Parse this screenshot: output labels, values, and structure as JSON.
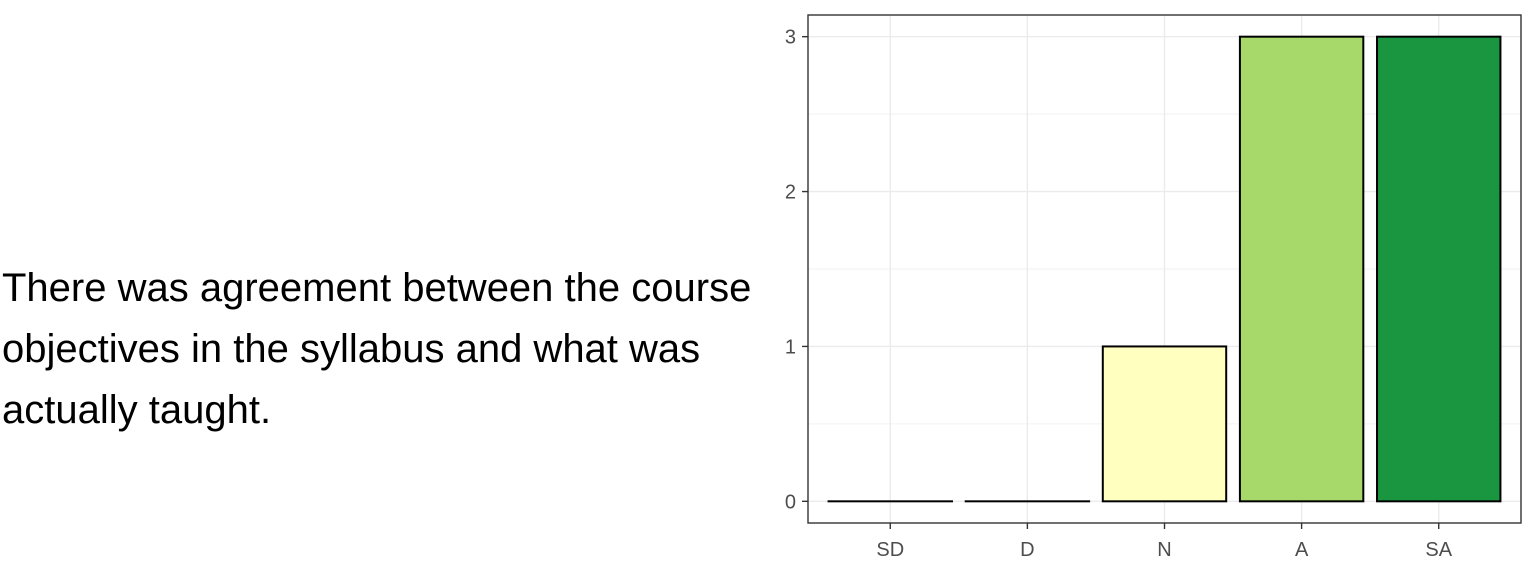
{
  "question": {
    "lines": [
      "There was agreement between the course",
      "objectives in the syllabus and what was",
      "actually taught."
    ]
  },
  "chart_data": {
    "type": "bar",
    "categories": [
      "SD",
      "D",
      "N",
      "A",
      "SA"
    ],
    "values": [
      0,
      0,
      1,
      3,
      3
    ],
    "colors": [
      "#d73027",
      "#fc8d59",
      "#ffffbf",
      "#a6d96a",
      "#1a9641"
    ],
    "yticks": [
      0,
      1,
      2,
      3
    ],
    "ylim": [
      -0.14,
      3.14
    ],
    "grid": true,
    "legend": "none",
    "title": "",
    "xlabel": "",
    "ylabel": ""
  }
}
